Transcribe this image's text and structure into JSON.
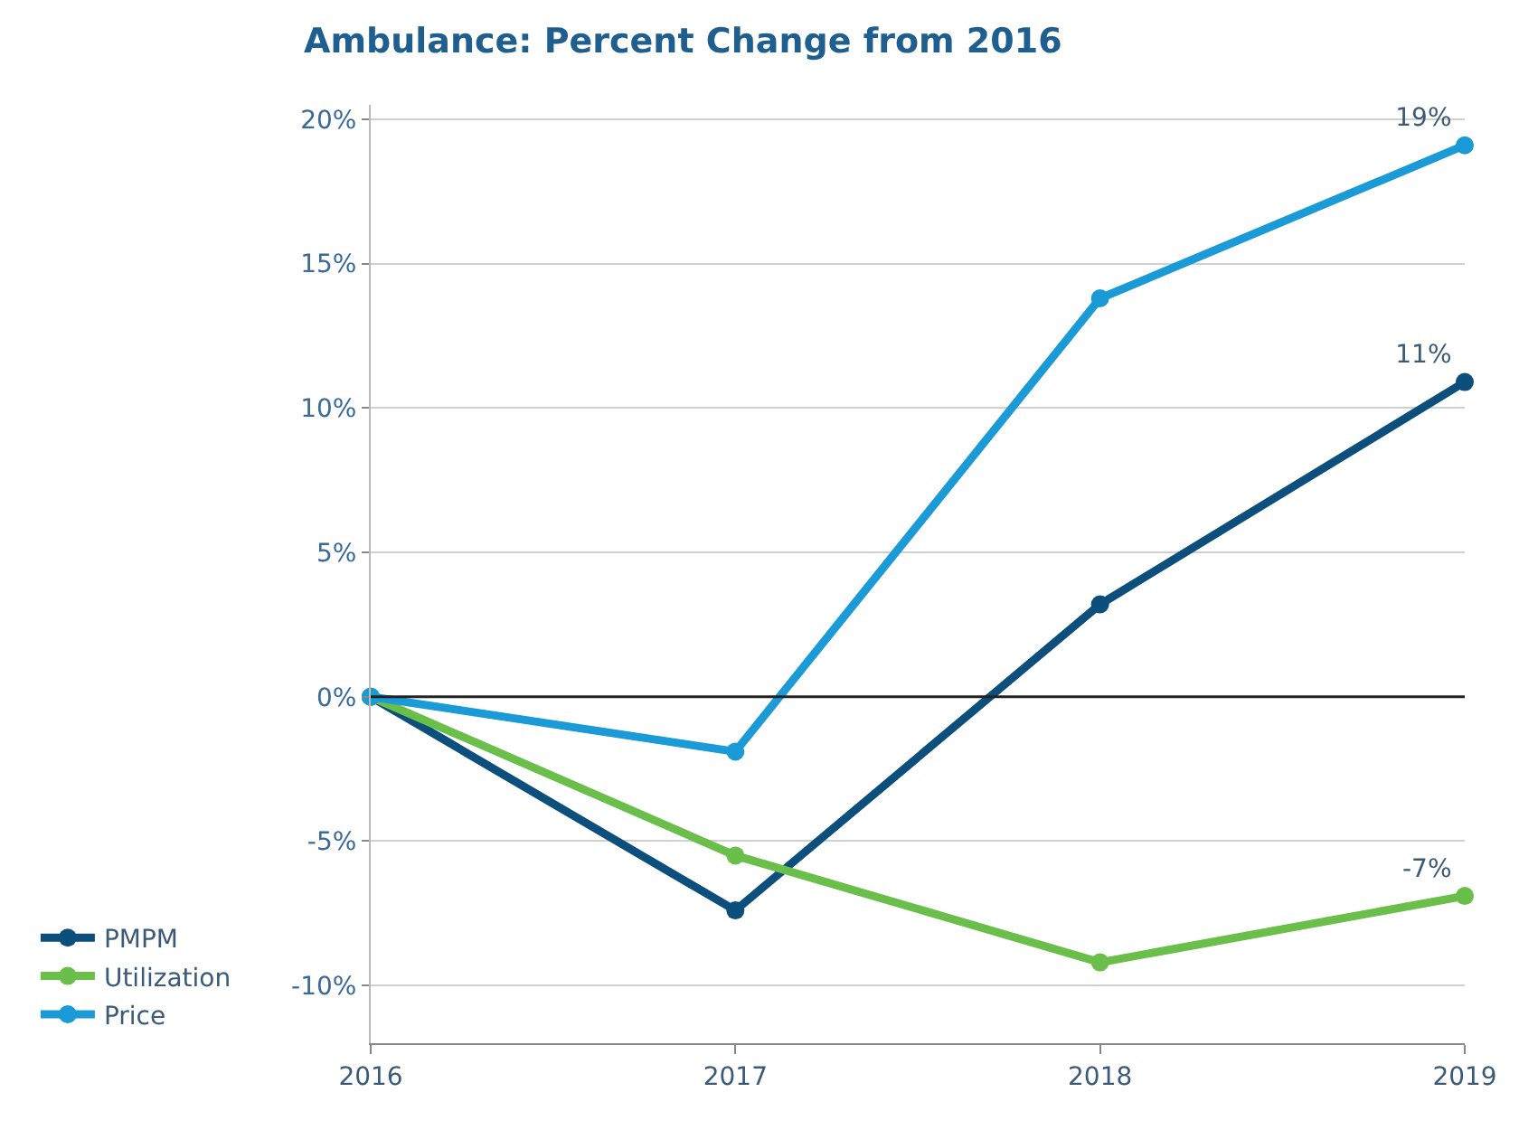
{
  "chart_data": {
    "type": "line",
    "title": "Ambulance: Percent Change from 2016",
    "categories": [
      "2016",
      "2017",
      "2018",
      "2019"
    ],
    "series": [
      {
        "name": "PMPM",
        "color": "#0d4f7c",
        "values": [
          0,
          -7.4,
          3.2,
          10.9
        ],
        "value_labels": [
          null,
          null,
          null,
          "11%"
        ]
      },
      {
        "name": "Utilization",
        "color": "#6abf4b",
        "values": [
          0,
          -5.5,
          -9.2,
          -6.9
        ],
        "value_labels": [
          null,
          null,
          null,
          "-7%"
        ]
      },
      {
        "name": "Price",
        "color": "#1a9ad6",
        "values": [
          0,
          -1.9,
          13.8,
          19.1
        ],
        "value_labels": [
          null,
          null,
          null,
          "19%"
        ]
      }
    ],
    "ylim": [
      -12,
      20.5
    ],
    "yticks": [
      {
        "value": -10,
        "label": "-10%"
      },
      {
        "value": -5,
        "label": "-5%"
      },
      {
        "value": 0,
        "label": "0%"
      },
      {
        "value": 5,
        "label": "5%"
      },
      {
        "value": 10,
        "label": "10%"
      },
      {
        "value": 15,
        "label": "15%"
      },
      {
        "value": 20,
        "label": "20%"
      }
    ],
    "ref_lines": [
      {
        "axis": "y",
        "value": 0,
        "color": "#222222"
      }
    ],
    "grid": "y",
    "legend": "bottom left",
    "marker": "circle",
    "line_style": "solid"
  }
}
